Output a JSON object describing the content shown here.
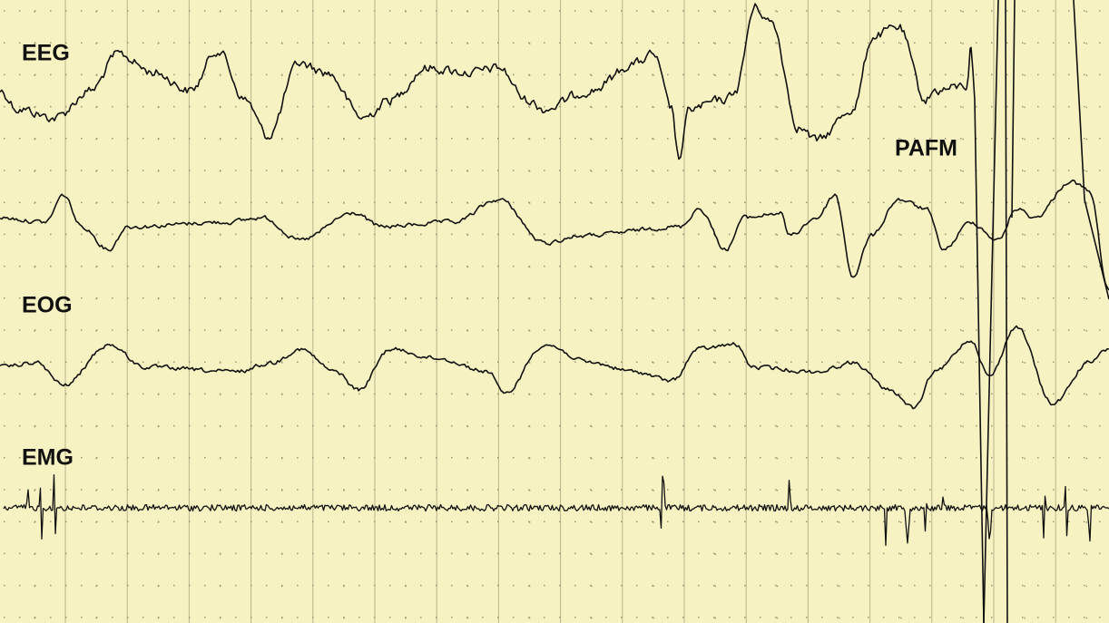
{
  "labels": {
    "eeg": "EEG",
    "eog": "EOG",
    "emg": "EMG",
    "pafm": "PAFM"
  }
}
